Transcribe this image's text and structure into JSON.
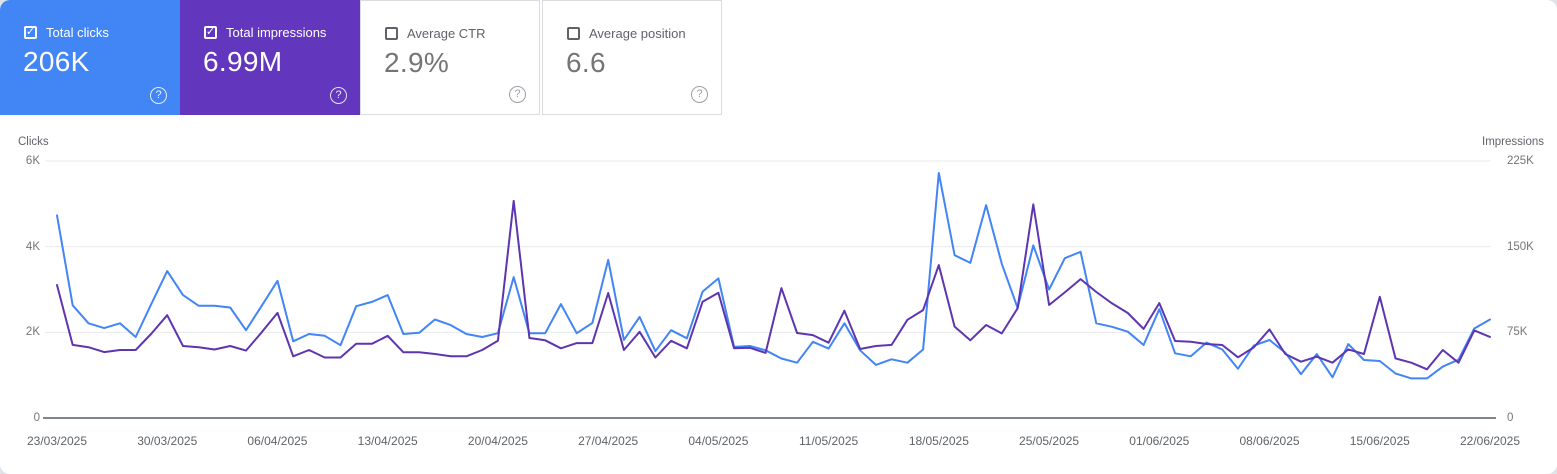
{
  "cards": [
    {
      "label": "Total clicks",
      "value": "206K",
      "checked": true,
      "bg": "#4285f4"
    },
    {
      "label": "Total impressions",
      "value": "6.99M",
      "checked": true,
      "bg": "#6236bd"
    },
    {
      "label": "Average CTR",
      "value": "2.9%",
      "checked": false,
      "bg": "#ffffff"
    },
    {
      "label": "Average position",
      "value": "6.6",
      "checked": false,
      "bg": "#ffffff"
    }
  ],
  "icons": {
    "check_glyph": "✓",
    "help_glyph": "?"
  },
  "chart_data": {
    "type": "line",
    "x_tick_labels": [
      "23/03/2025",
      "30/03/2025",
      "06/04/2025",
      "13/04/2025",
      "20/04/2025",
      "27/04/2025",
      "04/05/2025",
      "11/05/2025",
      "18/05/2025",
      "25/05/2025",
      "01/06/2025",
      "08/06/2025",
      "15/06/2025",
      "22/06/2025"
    ],
    "x_tick_interval_days": 7,
    "points_per_series": 92,
    "left_axis": {
      "title": "Clicks",
      "ticks": [
        "0",
        "2K",
        "4K",
        "6K"
      ],
      "max": 6000
    },
    "right_axis": {
      "title": "Impressions",
      "ticks": [
        "0",
        "75K",
        "150K",
        "225K"
      ],
      "max": 225000
    },
    "grid": true,
    "series": [
      {
        "name": "Total clicks",
        "axis": "left",
        "color": "#4285f4",
        "values": [
          4730,
          2630,
          2210,
          2100,
          2210,
          1890,
          2670,
          3430,
          2870,
          2620,
          2620,
          2580,
          2050,
          2620,
          3200,
          1790,
          1960,
          1920,
          1700,
          2610,
          2710,
          2870,
          1960,
          1990,
          2300,
          2170,
          1960,
          1890,
          1980,
          3290,
          1980,
          1980,
          2660,
          1980,
          2220,
          3690,
          1820,
          2360,
          1560,
          2050,
          1860,
          2950,
          3260,
          1660,
          1680,
          1580,
          1390,
          1290,
          1780,
          1620,
          2210,
          1580,
          1240,
          1370,
          1290,
          1600,
          5720,
          3800,
          3620,
          4970,
          3600,
          2570,
          4030,
          3000,
          3730,
          3880,
          2210,
          2130,
          2015,
          1705,
          2540,
          1510,
          1440,
          1760,
          1600,
          1150,
          1690,
          1820,
          1525,
          1025,
          1495,
          950,
          1725,
          1355,
          1330,
          1040,
          925,
          925,
          1200,
          1360,
          2090,
          2300
        ]
      },
      {
        "name": "Total impressions",
        "axis": "right",
        "color": "#5e35b1",
        "values": [
          116400,
          64000,
          62000,
          57700,
          59500,
          59500,
          74000,
          90000,
          63000,
          62000,
          60000,
          63000,
          59000,
          75000,
          92000,
          54000,
          59500,
          53000,
          53000,
          65000,
          65000,
          72000,
          57500,
          57500,
          56000,
          54000,
          54000,
          59500,
          67600,
          190100,
          70000,
          68000,
          61000,
          65600,
          65600,
          109400,
          59500,
          75500,
          53000,
          67600,
          61000,
          101800,
          109600,
          61000,
          61500,
          57000,
          113700,
          74400,
          72600,
          65900,
          93900,
          60400,
          63000,
          64000,
          86000,
          94500,
          133900,
          80000,
          68000,
          81400,
          74100,
          96000,
          187000,
          98900,
          110000,
          121600,
          110300,
          100300,
          91900,
          78000,
          100600,
          67400,
          66800,
          64800,
          63900,
          53100,
          61800,
          77600,
          56000,
          49300,
          53700,
          48400,
          60100,
          56000,
          106100,
          52200,
          48400,
          42600,
          59500,
          48400,
          76700,
          71000
        ]
      }
    ]
  }
}
